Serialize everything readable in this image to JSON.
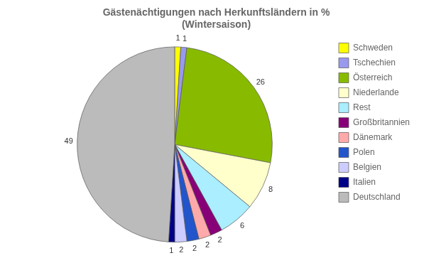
{
  "chart_data": {
    "type": "pie",
    "title": "Gästenächtigungen nach Herkunftsländern in %\n(Wintersaison)",
    "categories": [
      "Schweden",
      "Tschechien",
      "Österreich",
      "Niederlande",
      "Rest",
      "Großbritannien",
      "Dänemark",
      "Polen",
      "Belgien",
      "Italien",
      "Deutschland"
    ],
    "values": [
      1,
      1,
      26,
      8,
      6,
      2,
      2,
      2,
      2,
      1,
      49
    ],
    "colors": [
      "#ffff00",
      "#9999ee",
      "#88bb00",
      "#ffffcc",
      "#aaeeff",
      "#880077",
      "#ffaaaa",
      "#2255cc",
      "#ccccff",
      "#000088",
      "#bbbbbb"
    ],
    "legend": "right",
    "data_labels": true
  }
}
